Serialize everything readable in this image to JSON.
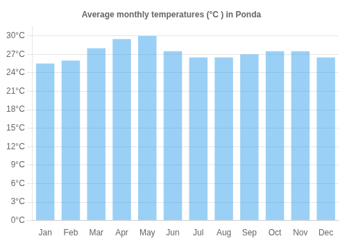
{
  "chart_data": {
    "type": "bar",
    "title": "Average monthly temperatures (°C ) in Ponda",
    "categories": [
      "Jan",
      "Feb",
      "Mar",
      "Apr",
      "May",
      "Jun",
      "Jul",
      "Aug",
      "Sep",
      "Oct",
      "Nov",
      "Dec"
    ],
    "values": [
      25.5,
      26.0,
      28.0,
      29.5,
      30.0,
      27.5,
      26.5,
      26.5,
      27.0,
      27.5,
      27.5,
      26.5
    ],
    "ylim": [
      0,
      31.5
    ],
    "yticks": [
      {
        "value": 0,
        "label": "0°C"
      },
      {
        "value": 3,
        "label": "3°C"
      },
      {
        "value": 6,
        "label": "6°C"
      },
      {
        "value": 9,
        "label": "9°C"
      },
      {
        "value": 12,
        "label": "12°C"
      },
      {
        "value": 15,
        "label": "15°C"
      },
      {
        "value": 18,
        "label": "18°C"
      },
      {
        "value": 21,
        "label": "21°C"
      },
      {
        "value": 24,
        "label": "24°C"
      },
      {
        "value": 27,
        "label": "27°C"
      },
      {
        "value": 30,
        "label": "30°C"
      }
    ],
    "grid": true
  }
}
